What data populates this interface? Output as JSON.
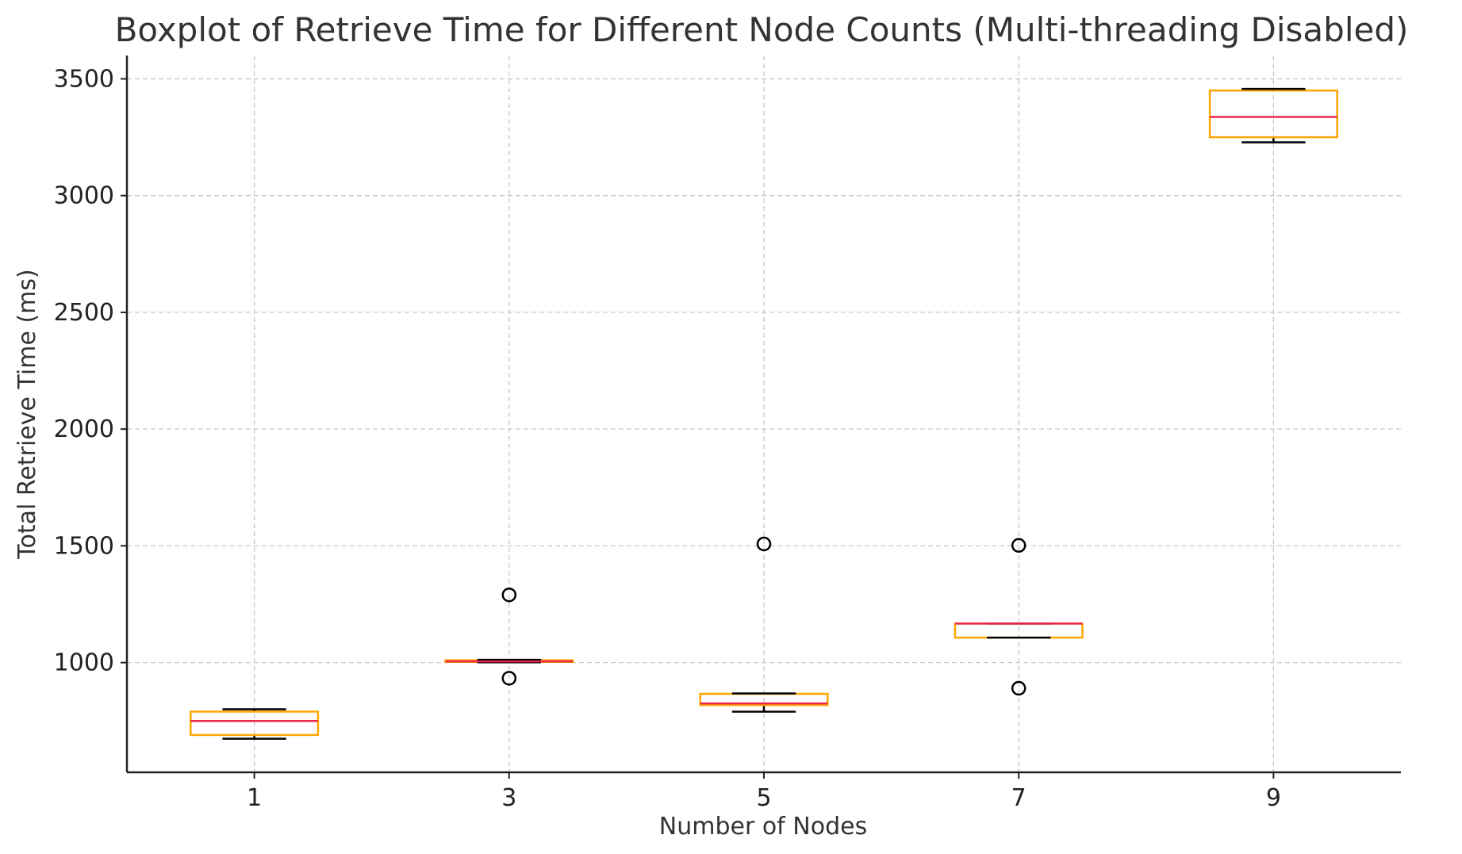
{
  "chart_data": {
    "type": "boxplot",
    "title": "Boxplot of Retrieve Time for Different Node Counts (Multi-threading Disabled)",
    "xlabel": "Number of Nodes",
    "ylabel": "Total Retrieve Time (ms)",
    "ylim": [
      530,
      3600
    ],
    "yticks": [
      1000,
      1500,
      2000,
      2500,
      3000,
      3500
    ],
    "grid": true,
    "colors": {
      "box": "#FFA500",
      "median": "#E8274B",
      "whisker": "#000000",
      "flier": "#000000"
    },
    "categories": [
      "1",
      "3",
      "5",
      "7",
      "9"
    ],
    "boxes": [
      {
        "label": "1",
        "whislo": 674,
        "q1": 690,
        "med": 750,
        "q3": 790,
        "whishi": 800,
        "fliers": []
      },
      {
        "label": "3",
        "whislo": 1001,
        "q1": 1003,
        "med": 1005,
        "q3": 1010,
        "whishi": 1012,
        "fliers": [
          1290,
          933
        ]
      },
      {
        "label": "5",
        "whislo": 790,
        "q1": 818,
        "med": 825,
        "q3": 866,
        "whishi": 868,
        "fliers": [
          1508
        ]
      },
      {
        "label": "7",
        "whislo": 1107,
        "q1": 1107,
        "med": 1167,
        "q3": 1167,
        "whishi": 1167,
        "fliers": [
          1502,
          890
        ]
      },
      {
        "label": "9",
        "whislo": 3228,
        "q1": 3250,
        "med": 3337,
        "q3": 3450,
        "whishi": 3457,
        "fliers": []
      }
    ]
  }
}
